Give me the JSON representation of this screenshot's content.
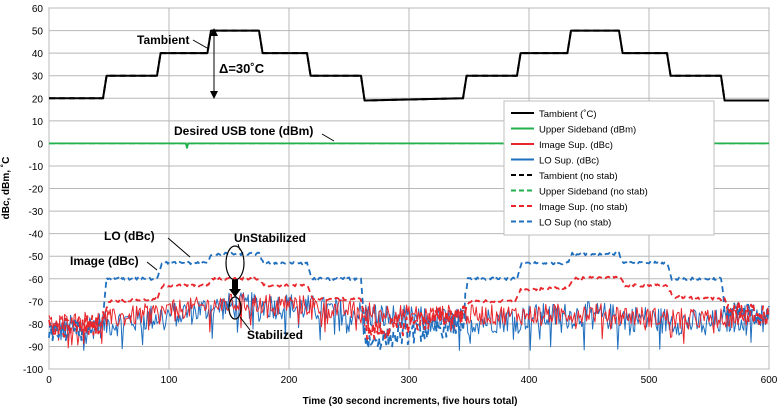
{
  "chart_data": {
    "type": "line",
    "xlabel": "Time (30 second increments,  five hours total)",
    "ylabel": "dBc, dBm, ˚C",
    "xlim": [
      0,
      600
    ],
    "ylim": [
      -100,
      60
    ],
    "xticks": [
      0,
      100,
      200,
      300,
      400,
      500,
      600
    ],
    "yticks": [
      -100,
      -90,
      -80,
      -70,
      -60,
      -50,
      -40,
      -30,
      -20,
      -10,
      0,
      10,
      20,
      30,
      40,
      50,
      60
    ],
    "grid": true,
    "legend_position": "right",
    "series": [
      {
        "name": "Tambient (˚C)",
        "color": "#000000",
        "dash": "solid",
        "x": [
          0,
          45,
          48,
          90,
          93,
          132,
          135,
          175,
          178,
          215,
          218,
          260,
          263,
          345,
          348,
          390,
          393,
          432,
          435,
          475,
          478,
          515,
          518,
          560,
          563,
          600
        ],
        "y": [
          20,
          20,
          30,
          30,
          40,
          40,
          50,
          50,
          40,
          40,
          30,
          30,
          19,
          20,
          30,
          30,
          40,
          40,
          50,
          50,
          40,
          40,
          30,
          30,
          19,
          19
        ]
      },
      {
        "name": "Upper Sideband (dBm)",
        "color": "#22b14c",
        "dash": "solid",
        "x": [
          0,
          114,
          115,
          116,
          600
        ],
        "y": [
          0,
          0,
          -2,
          0,
          0
        ]
      },
      {
        "name": "Image Sup. (dBc)",
        "color": "#e8262b",
        "dash": "solid",
        "x": [
          0,
          50,
          100,
          150,
          200,
          250,
          300,
          350,
          400,
          450,
          500,
          550,
          600
        ],
        "y": [
          -80,
          -78,
          -74,
          -71,
          -71,
          -74,
          -76,
          -76,
          -76,
          -75,
          -77,
          -78,
          -76
        ]
      },
      {
        "name": "LO Sup. (dBc)",
        "color": "#1f6fbf",
        "dash": "solid",
        "x": [
          0,
          50,
          100,
          150,
          200,
          250,
          300,
          350,
          400,
          450,
          500,
          550,
          600
        ],
        "y": [
          -83,
          -80,
          -76,
          -72,
          -72,
          -75,
          -78,
          -79,
          -77,
          -76,
          -78,
          -80,
          -75
        ]
      },
      {
        "name": "Tambient (no stab)",
        "color": "#000000",
        "dash": "dash",
        "x": [
          0,
          45,
          48,
          90,
          93,
          132,
          135,
          175,
          178,
          215,
          218,
          260,
          263,
          345,
          348,
          390,
          393,
          432,
          435,
          475,
          478,
          515,
          518,
          560,
          563,
          600
        ],
        "y": [
          20,
          20,
          30,
          30,
          40,
          40,
          50,
          50,
          40,
          40,
          30,
          30,
          19,
          20,
          30,
          30,
          40,
          40,
          50,
          50,
          40,
          40,
          30,
          30,
          19,
          19
        ]
      },
      {
        "name": "Upper Sideband (no stab)",
        "color": "#22b14c",
        "dash": "dash",
        "x": [
          0,
          600
        ],
        "y": [
          0,
          0
        ]
      },
      {
        "name": "Image Sup. (no stab)",
        "color": "#e8262b",
        "dash": "dash",
        "x": [
          0,
          44,
          50,
          90,
          95,
          132,
          136,
          175,
          180,
          215,
          220,
          260,
          265,
          345,
          350,
          388,
          393,
          432,
          437,
          475,
          480,
          515,
          520,
          560,
          565,
          600
        ],
        "y": [
          -82,
          -80,
          -70,
          -69,
          -63,
          -63,
          -60,
          -60,
          -63,
          -63,
          -69,
          -69,
          -84,
          -75,
          -70,
          -70,
          -65,
          -64,
          -60,
          -59,
          -63,
          -63,
          -68,
          -69,
          -73,
          -77
        ]
      },
      {
        "name": "LO Sup (no stab)",
        "color": "#1f6fbf",
        "dash": "dash",
        "x": [
          0,
          44,
          48,
          90,
          94,
          132,
          136,
          175,
          179,
          215,
          219,
          260,
          264,
          345,
          349,
          390,
          394,
          432,
          436,
          475,
          479,
          515,
          519,
          560,
          564,
          600
        ],
        "y": [
          -84,
          -82,
          -60,
          -60,
          -53,
          -53,
          -49,
          -49,
          -53,
          -53,
          -60,
          -60,
          -88,
          -80,
          -60,
          -60,
          -53,
          -53,
          -49,
          -49,
          -53,
          -53,
          -60,
          -60,
          -75,
          -76
        ]
      }
    ],
    "annotations": {
      "tambient": "Tambient",
      "delta": "Δ=30˚C",
      "usb": "Desired USB tone (dBm)",
      "lo": "LO (dBc)",
      "image": "Image (dBc)",
      "unstabilized": "UnStabilized",
      "stabilized": "Stabilized"
    }
  }
}
